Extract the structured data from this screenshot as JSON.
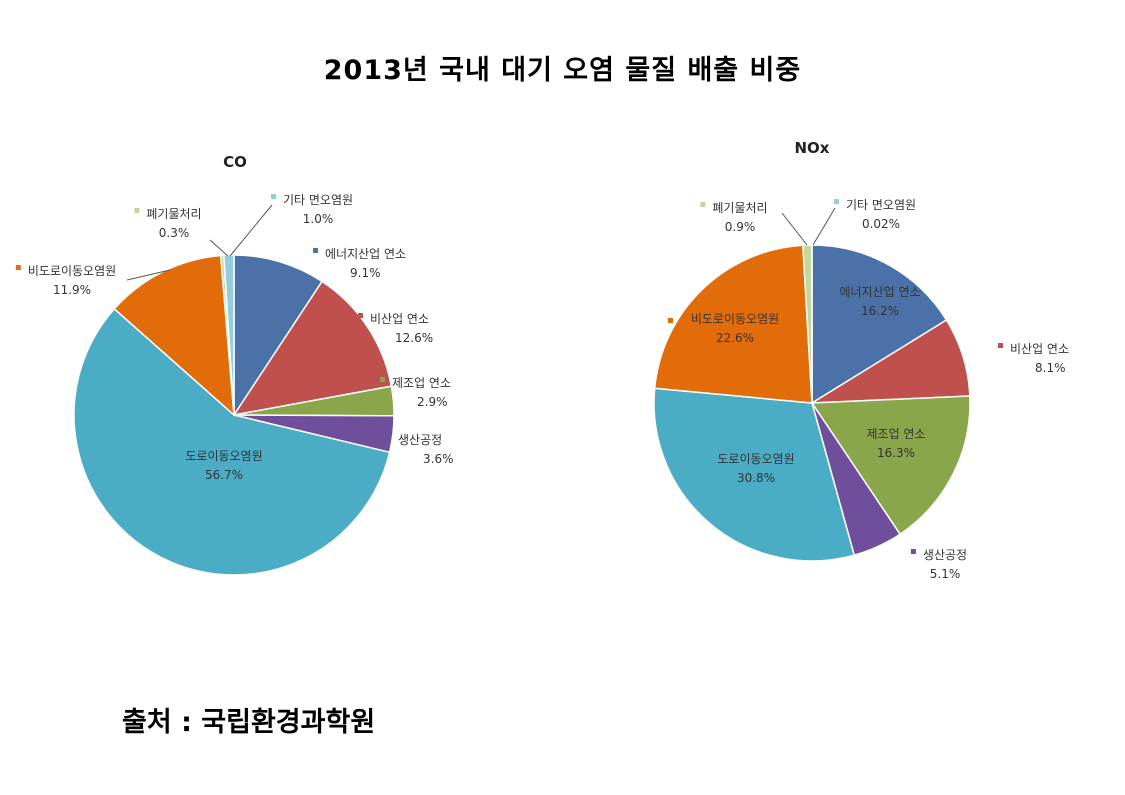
{
  "title": "2013년 국내 대기 오염 물질 배출 비중",
  "source": "출처 : 국립환경과학원",
  "chart_data": [
    {
      "type": "pie",
      "title": "CO",
      "start_angle_deg": 0,
      "slices": [
        {
          "label": "에너지산업 연소",
          "value": 9.1,
          "display": "9.1%",
          "color": "#4a72a8"
        },
        {
          "label": "비산업 연소",
          "value": 12.6,
          "display": "12.6%",
          "color": "#c0504d"
        },
        {
          "label": "제조업 연소",
          "value": 2.9,
          "display": "2.9%",
          "color": "#8aa64a"
        },
        {
          "label": "생산공정",
          "value": 3.6,
          "display": "3.6%",
          "color": "#6f4f9c"
        },
        {
          "label": "도로이동오염원",
          "value": 56.7,
          "display": "56.7%",
          "color": "#4bacc6"
        },
        {
          "label": "비도로이동오염원",
          "value": 11.9,
          "display": "11.9%",
          "color": "#e36c0a"
        },
        {
          "label": "폐기물처리",
          "value": 0.3,
          "display": "0.3%",
          "color": "#c3d69b"
        },
        {
          "label": "기타 면오염원",
          "value": 1.0,
          "display": "1.0%",
          "color": "#93cddd"
        }
      ]
    },
    {
      "type": "pie",
      "title": "NOx",
      "start_angle_deg": 0,
      "slices": [
        {
          "label": "에너지산업 연소",
          "value": 16.2,
          "display": "16.2%",
          "color": "#4a72a8"
        },
        {
          "label": "비산업 연소",
          "value": 8.1,
          "display": "8.1%",
          "color": "#c0504d"
        },
        {
          "label": "제조업 연소",
          "value": 16.3,
          "display": "16.3%",
          "color": "#8aa64a"
        },
        {
          "label": "생산공정",
          "value": 5.1,
          "display": "5.1%",
          "color": "#6f4f9c"
        },
        {
          "label": "도로이동오염원",
          "value": 30.8,
          "display": "30.8%",
          "color": "#4bacc6"
        },
        {
          "label": "비도로이동오염원",
          "value": 22.6,
          "display": "22.6%",
          "color": "#e36c0a"
        },
        {
          "label": "폐기물처리",
          "value": 0.9,
          "display": "0.9%",
          "color": "#c3d69b"
        },
        {
          "label": "기타 면오염원",
          "value": 0.02,
          "display": "0.02%",
          "color": "#93cddd"
        }
      ]
    }
  ]
}
